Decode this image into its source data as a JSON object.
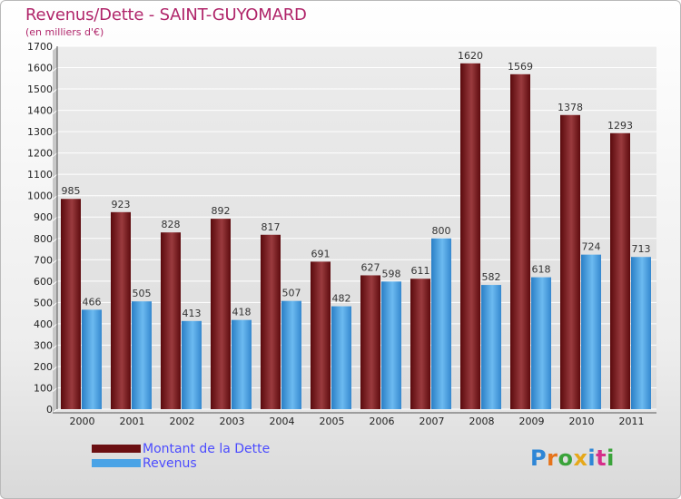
{
  "header": {
    "title": "Revenus/Dette - SAINT-GUYOMARD",
    "subtitle": "(en milliers d'€)"
  },
  "legend": {
    "items": [
      {
        "label": "Montant de la Dette",
        "color": "#6b0f12"
      },
      {
        "label": "Revenus",
        "color": "#4aa3e6"
      }
    ]
  },
  "logo": {
    "text": "Proxiti",
    "letter_colors": [
      "#2e86d6",
      "#e6731a",
      "#3aa33a",
      "#e6a81a",
      "#2e86d6",
      "#d62e8a",
      "#3aa33a"
    ]
  },
  "chart_data": {
    "type": "bar",
    "categories": [
      "2000",
      "2001",
      "2002",
      "2003",
      "2004",
      "2005",
      "2006",
      "2007",
      "2008",
      "2009",
      "2010",
      "2011"
    ],
    "series": [
      {
        "name": "Montant de la Dette",
        "color": "#6b0f12",
        "values": [
          985,
          923,
          828,
          892,
          817,
          691,
          627,
          611,
          1620,
          1569,
          1378,
          1293
        ]
      },
      {
        "name": "Revenus",
        "color": "#4aa3e6",
        "values": [
          466,
          505,
          413,
          418,
          507,
          482,
          598,
          800,
          582,
          618,
          724,
          713
        ]
      }
    ],
    "ylim": [
      0,
      1700
    ],
    "yticks": [
      0,
      100,
      200,
      300,
      400,
      500,
      600,
      700,
      800,
      900,
      1000,
      1100,
      1200,
      1300,
      1400,
      1500,
      1600,
      1700
    ],
    "grid": true,
    "legend_position": "bottom-left",
    "data_labels": true
  }
}
